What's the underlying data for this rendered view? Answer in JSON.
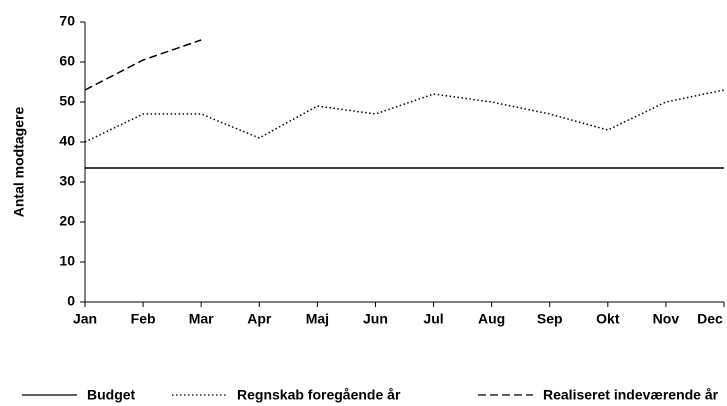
{
  "chart_data": {
    "type": "line",
    "y_label": "Antal modtagere",
    "categories": [
      "Jan",
      "Feb",
      "Mar",
      "Apr",
      "Maj",
      "Jun",
      "Jul",
      "Aug",
      "Sep",
      "Okt",
      "Nov",
      "Dec"
    ],
    "series": [
      {
        "name": "Budget",
        "color": "#000000",
        "dash": "none",
        "values": [
          33.5,
          33.5,
          33.5,
          33.5,
          33.5,
          33.5,
          33.5,
          33.5,
          33.5,
          33.5,
          33.5,
          33.5
        ]
      },
      {
        "name": "Regnskab foregående år",
        "color": "#000000",
        "dash": "1.5 2.5",
        "values": [
          40,
          47,
          47,
          41,
          49,
          47,
          52,
          50,
          47,
          43,
          50,
          53
        ]
      },
      {
        "name": "Realiseret indeværende år",
        "color": "#000000",
        "dash": "8 4",
        "values": [
          53,
          60.5,
          65.5,
          null,
          null,
          null,
          null,
          null,
          null,
          null,
          null,
          null
        ]
      }
    ],
    "ylim": [
      0,
      70
    ],
    "yticks": [
      0,
      10,
      20,
      30,
      40,
      50,
      60,
      70
    ],
    "grid": false,
    "legend": "bottom"
  }
}
